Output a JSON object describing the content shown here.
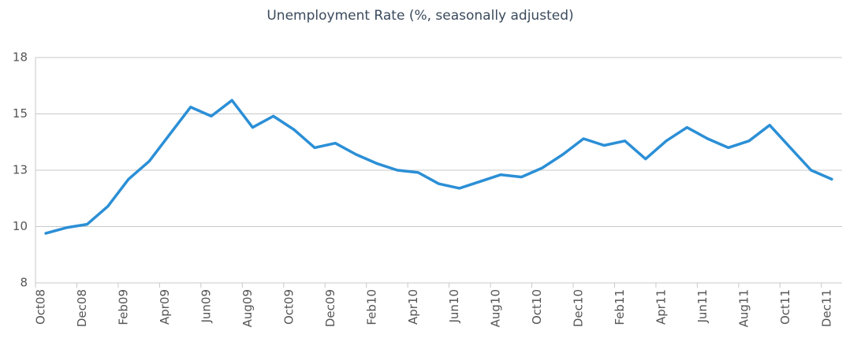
{
  "chart_data": {
    "type": "line",
    "title": "Unemployment Rate (%, seasonally adjusted)",
    "categories": [
      "Oct08",
      null,
      "Dec08",
      null,
      "Feb09",
      null,
      "Apr09",
      null,
      "Jun09",
      null,
      "Aug09",
      null,
      "Oct09",
      null,
      "Dec09",
      null,
      "Feb10",
      null,
      "Apr10",
      null,
      "Jun10",
      null,
      "Aug10",
      null,
      "Oct10",
      null,
      "Dec10",
      null,
      "Feb11",
      null,
      "Apr11",
      null,
      "Jun11",
      null,
      "Aug11",
      null,
      "Oct11",
      null,
      "Dec11"
    ],
    "series": [
      {
        "name": "Unemployment Rate",
        "color": "#2b8fd6",
        "values": [
          9.7,
          9.95,
          10.1,
          10.9,
          12.1,
          12.9,
          14.1,
          15.3,
          14.9,
          15.6,
          14.4,
          14.9,
          14.3,
          13.5,
          13.7,
          13.2,
          12.8,
          12.5,
          12.4,
          11.9,
          11.7,
          12.0,
          12.3,
          12.2,
          12.6,
          13.2,
          13.9,
          13.6,
          13.8,
          13.0,
          13.8,
          14.4,
          13.9,
          13.5,
          13.8,
          14.5,
          13.5,
          12.5,
          12.1
        ]
      }
    ],
    "ylim": [
      7.5,
      17.5
    ],
    "yticks": [
      {
        "value": 7.5,
        "label": "8"
      },
      {
        "value": 10,
        "label": "10"
      },
      {
        "value": 12.5,
        "label": "13"
      },
      {
        "value": 15,
        "label": "15"
      },
      {
        "value": 17.5,
        "label": "18"
      }
    ],
    "grid": true
  }
}
